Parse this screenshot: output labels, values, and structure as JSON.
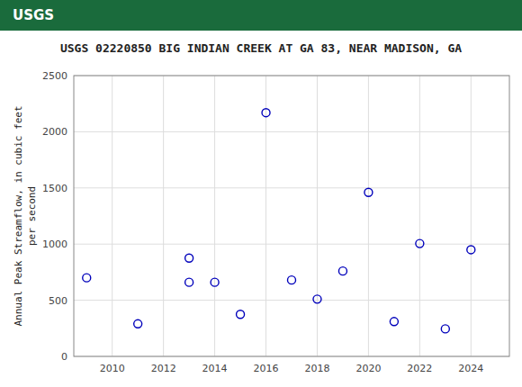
{
  "chart_data": {
    "type": "scatter",
    "title": "USGS 02220850 BIG INDIAN CREEK AT GA 83, NEAR MADISON, GA",
    "ylabel": "Annual Peak Streamflow, in cubic feet\nper second",
    "annotations": [
      "USGS"
    ],
    "x": [
      2009,
      2011,
      2013,
      2013,
      2014,
      2015,
      2016,
      2017,
      2018,
      2019,
      2020,
      2021,
      2022,
      2023,
      2024
    ],
    "values": [
      700,
      290,
      875,
      660,
      660,
      375,
      2170,
      680,
      510,
      760,
      1460,
      310,
      1005,
      245,
      950
    ],
    "color": "#0000BB",
    "marker": "circle",
    "xlim": [
      2008.5,
      2025.5
    ],
    "ylim": [
      0,
      2500
    ],
    "xticks": [
      2010,
      2012,
      2014,
      2016,
      2018,
      2020,
      2022,
      2024
    ],
    "yticks": [
      0,
      500,
      1000,
      1500,
      2000,
      2500
    ],
    "grid": true
  }
}
